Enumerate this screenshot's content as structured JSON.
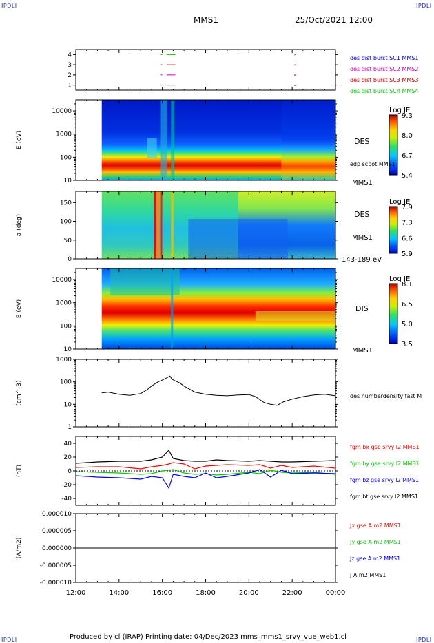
{
  "corners": {
    "top_left": "IPDLI",
    "top_right": "IPDLI",
    "bottom_left": "IPDLI",
    "bottom_right": "IPDLI"
  },
  "header": {
    "spacecraft": "MMS1",
    "date": "25/Oct/2021 12:00"
  },
  "footer": {
    "text": "Produced by cl (IRAP)   Printing date: 04/Dec/2023   mms_mms1_srvy_vue_web1.cl"
  },
  "x_axis": {
    "ticks": [
      "12:00",
      "14:00",
      "16:00",
      "18:00",
      "20:00",
      "22:00",
      "00:00"
    ]
  },
  "colors": {
    "bx": "#ff0000",
    "by": "#00cc00",
    "bz": "#0000ff",
    "bt": "#000000",
    "c1": "#0000cc",
    "c2": "#cc00cc",
    "c3": "#cc0000",
    "c4": "#00cc00"
  },
  "chart_data": [
    {
      "type": "scatter",
      "name": "burst intervals",
      "ylim": [
        0.5,
        4.5
      ],
      "yticks": [
        "4",
        "3",
        "2",
        "1"
      ],
      "series": [
        {
          "name": "des dist burst SC1 MMS1",
          "level": 1,
          "intervals": [
            [
              15.9,
              16.0
            ],
            [
              16.2,
              16.6
            ]
          ],
          "markers": [
            22.1
          ]
        },
        {
          "name": "des dist burst SC2 MMS2",
          "level": 2,
          "intervals": [
            [
              15.9,
              16.0
            ],
            [
              16.2,
              16.6
            ]
          ],
          "markers": [
            22.1
          ]
        },
        {
          "name": "des dist burst SC3 MMS3",
          "level": 3,
          "intervals": [
            [
              15.9,
              16.0
            ],
            [
              16.2,
              16.6
            ]
          ],
          "markers": [
            22.1
          ]
        },
        {
          "name": "des dist burst SC4 MMS4",
          "level": 4,
          "intervals": [
            [
              15.9,
              16.0
            ],
            [
              16.2,
              16.6
            ]
          ],
          "markers": [
            22.1
          ]
        }
      ]
    },
    {
      "type": "heatmap",
      "ylabel": "E (eV)",
      "yscale": "log",
      "ylim": [
        10,
        30000
      ],
      "yticks": [
        "10000",
        "1000",
        "100",
        "10"
      ],
      "x_start": 13.2,
      "right_labels": [
        "DES",
        "edp scpot MMS1",
        "MMS1"
      ],
      "colorbar": {
        "title": "Log JE",
        "ticks": [
          "9.3",
          "8.0",
          "6.7",
          "5.4"
        ],
        "range": [
          5.4,
          9.3
        ]
      }
    },
    {
      "type": "heatmap",
      "ylabel": "a (deg)",
      "ylim": [
        0,
        180
      ],
      "yticks": [
        "150",
        "100",
        "50",
        "0"
      ],
      "x_start": 13.2,
      "right_labels": [
        "DES",
        "MMS1",
        "143-189 eV"
      ],
      "colorbar": {
        "title": "Log JE",
        "ticks": [
          "7.9",
          "7.3",
          "6.6",
          "5.9"
        ],
        "range": [
          5.9,
          7.9
        ]
      }
    },
    {
      "type": "heatmap",
      "ylabel": "E (eV)",
      "yscale": "log",
      "ylim": [
        10,
        30000
      ],
      "yticks": [
        "10000",
        "1000",
        "100",
        "10"
      ],
      "x_start": 13.2,
      "right_labels": [
        "DIS",
        "MMS1"
      ],
      "colorbar": {
        "title": "Log JE",
        "ticks": [
          "8.1",
          "6.5",
          "5.0",
          "3.5"
        ],
        "range": [
          3.5,
          8.1
        ]
      }
    },
    {
      "type": "line",
      "ylabel": "(cm^-3)",
      "yscale": "log",
      "ylim": [
        1,
        1000
      ],
      "yticks": [
        "1000",
        "100",
        "10",
        "1"
      ],
      "series": [
        {
          "name": "des numberdensity fast M",
          "x": [
            13.2,
            13.5,
            14.0,
            14.5,
            15.0,
            15.3,
            15.5,
            15.8,
            16.0,
            16.2,
            16.35,
            16.45,
            16.6,
            16.8,
            17.0,
            17.5,
            18.0,
            18.5,
            19.0,
            19.5,
            20.0,
            20.3,
            20.7,
            21.0,
            21.3,
            21.6,
            22.0,
            22.5,
            23.0,
            23.5,
            24.0
          ],
          "y": [
            32,
            35,
            28,
            25,
            30,
            45,
            65,
            100,
            120,
            150,
            180,
            130,
            110,
            90,
            65,
            35,
            28,
            25,
            24,
            26,
            27,
            22,
            12,
            10,
            9,
            13,
            17,
            22,
            26,
            28,
            24
          ]
        }
      ]
    },
    {
      "type": "line",
      "ylabel": "(nT)",
      "ylim": [
        -50,
        50
      ],
      "yticks": [
        "40",
        "20",
        "0",
        "-20",
        "-40"
      ],
      "series": [
        {
          "name": "fgm bx gse srvy l2 MMS1",
          "x": [
            12,
            13,
            14,
            15,
            15.5,
            16,
            16.3,
            16.5,
            17,
            17.5,
            18,
            18.5,
            19,
            20,
            20.5,
            21,
            21.5,
            22,
            23,
            24
          ],
          "y": [
            5,
            6,
            6,
            3,
            6,
            8,
            10,
            12,
            10,
            3,
            7,
            8,
            9,
            8,
            9,
            4,
            8,
            5,
            7,
            4
          ]
        },
        {
          "name": "fgm by gse srvy l2 MMS1",
          "x": [
            12,
            13,
            14,
            15,
            15.5,
            16,
            16.5,
            17,
            17.5,
            18,
            18.5,
            19,
            20,
            20.5,
            21,
            21.5,
            22,
            23,
            24
          ],
          "y": [
            -1,
            -2,
            -3,
            -5,
            -4,
            0,
            2,
            -3,
            -5,
            -4,
            -6,
            -5,
            -2,
            -4,
            1,
            -2,
            -3,
            -2,
            -5
          ]
        },
        {
          "name": "fgm bz gse srvy l2 MMS1",
          "x": [
            12,
            13,
            14,
            15,
            15.5,
            16,
            16.3,
            16.5,
            17,
            17.5,
            18,
            18.5,
            19,
            20,
            20.5,
            21,
            21.5,
            22,
            23,
            24
          ],
          "y": [
            -7,
            -9,
            -10,
            -12,
            -8,
            -10,
            -25,
            -5,
            -8,
            -10,
            -3,
            -10,
            -8,
            -3,
            2,
            -9,
            1,
            -4,
            -3,
            -4
          ]
        },
        {
          "name": "fgm bt gse srvy l2 MMS1",
          "x": [
            12,
            13,
            14,
            15,
            15.5,
            16,
            16.3,
            16.5,
            17,
            17.5,
            18,
            18.5,
            19,
            20,
            20.5,
            21,
            21.5,
            22,
            23,
            24
          ],
          "y": [
            11,
            13,
            14,
            14,
            16,
            20,
            30,
            18,
            15,
            14,
            14,
            16,
            15,
            14,
            15,
            14,
            13,
            13,
            14,
            15
          ]
        }
      ]
    },
    {
      "type": "line",
      "ylabel": "(A/m2)",
      "ylim": [
        -1e-05,
        1e-05
      ],
      "yticks": [
        "0.000010",
        "0.000005",
        "0.000000",
        "-0.000005",
        "-0.000010"
      ],
      "series": [
        {
          "name": "Jx gse A m2 MMS1",
          "x": [
            12,
            15.8,
            16.0,
            16.4,
            24
          ],
          "y": [
            0,
            0,
            0,
            0,
            0
          ]
        },
        {
          "name": "Jy gse A m2 MMS1",
          "x": [
            12,
            15.8,
            16.0,
            16.4,
            24
          ],
          "y": [
            0,
            0,
            0,
            0,
            0
          ]
        },
        {
          "name": "Jz gse A m2 MMS1",
          "x": [
            12,
            15.8,
            16.0,
            16.4,
            24
          ],
          "y": [
            0,
            0,
            0,
            0,
            0
          ]
        },
        {
          "name": "J A m2 MMS1",
          "x": [
            12,
            15.8,
            16.0,
            16.4,
            24
          ],
          "y": [
            0,
            0,
            0,
            0,
            0
          ]
        }
      ]
    }
  ]
}
